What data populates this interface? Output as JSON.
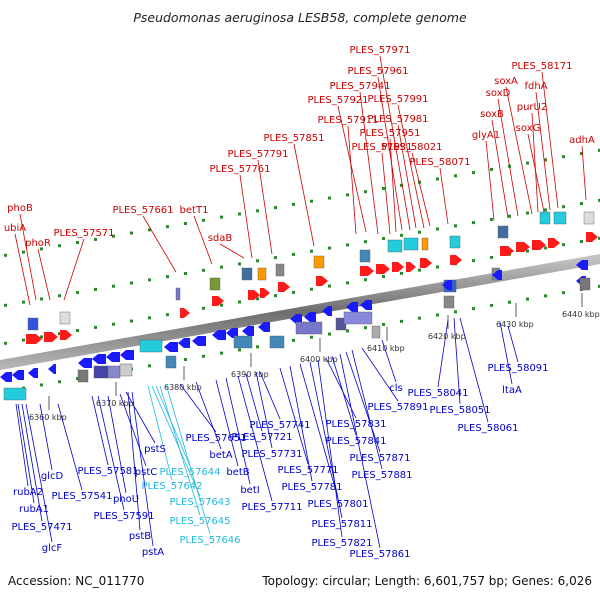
{
  "title": "Pseudomonas aeruginosa LESB58, complete genome",
  "footer": {
    "accession": "Accession: NC_011770",
    "summary": "Topology: circular; Length: 6,601,757 bp; Genes: 6,026"
  },
  "colors": {
    "forward_label": "#cc0000",
    "reverse_label": "#0000cc",
    "rna_label": "#22b8e0",
    "grid_dots": "#2a8a2a",
    "backbone": "#777777"
  },
  "scale_ticks": [
    "6360 kbp",
    "6370 kbp",
    "6380 kbp",
    "6390 kbp",
    "6400 kbp",
    "6410 kbp",
    "6420 kbp",
    "6430 kbp",
    "6440 kbp"
  ],
  "forward_labels": [
    "phoB",
    "ubiA",
    "phoR",
    "PLES_57571",
    "PLES_57661",
    "betT1",
    "sdaB",
    "PLES_57761",
    "PLES_57791",
    "PLES_57851",
    "PLES_57911",
    "PLES_57921",
    "PLES_57931",
    "PLES_57941",
    "PLES_57951",
    "PLES_57961",
    "PLES_57971",
    "PLES_57981",
    "PLES_57991",
    "PLES_58021",
    "PLES_58071",
    "glyA1",
    "soxB",
    "soxD",
    "soxA",
    "purU2",
    "soxG",
    "fdhA",
    "PLES_58171",
    "adhA"
  ],
  "reverse_labels": [
    "rubA2",
    "rubA1",
    "PLES_57471",
    "glcF",
    "glcD",
    "PLES_57541",
    "PLES_57581",
    "phoU",
    "PLES_57591",
    "pstC",
    "pstS",
    "pstB",
    "pstA",
    "PLES_57651",
    "betA",
    "betB",
    "betI",
    "PLES_57711",
    "PLES_57721",
    "PLES_57731",
    "PLES_57741",
    "PLES_57771",
    "PLES_57781",
    "PLES_57801",
    "PLES_57811",
    "PLES_57821",
    "PLES_57831",
    "PLES_57841",
    "PLES_57861",
    "PLES_57871",
    "PLES_57881",
    "PLES_57891",
    "cls",
    "PLES_58041",
    "PLES_58051",
    "PLES_58061",
    "PLES_58091",
    "ltaA"
  ],
  "rna_labels": [
    "PLES_57642",
    "PLES_57643",
    "PLES_57644",
    "PLES_57645",
    "PLES_57646"
  ]
}
